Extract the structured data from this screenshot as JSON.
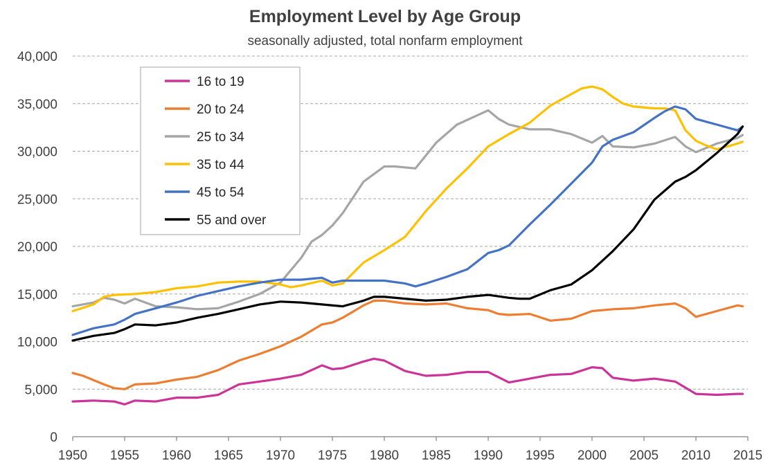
{
  "chart_data": {
    "type": "line",
    "title": "Employment Level by Age Group",
    "subtitle": "seasonally adjusted, total nonfarm employment",
    "xlabel": "",
    "ylabel": "",
    "xlim": [
      1950,
      2015
    ],
    "ylim": [
      0,
      40000
    ],
    "x_ticks": [
      "1950",
      "1955",
      "1960",
      "1965",
      "1970",
      "1975",
      "1980",
      "1985",
      "1990",
      "1995",
      "2000",
      "2005",
      "2010",
      "2015"
    ],
    "y_ticks": [
      "0",
      "5,000",
      "10,000",
      "15,000",
      "20,000",
      "25,000",
      "30,000",
      "35,000",
      "40,000"
    ],
    "grid": "horizontal dashed",
    "legend": "top-left inside plot",
    "series": [
      {
        "name": "16 to 19",
        "color": "#cc3399",
        "x": [
          1950,
          1952,
          1954,
          1955,
          1956,
          1958,
          1960,
          1962,
          1964,
          1966,
          1968,
          1970,
          1972,
          1974,
          1975,
          1976,
          1978,
          1979,
          1980,
          1982,
          1984,
          1986,
          1988,
          1990,
          1992,
          1994,
          1996,
          1998,
          2000,
          2001,
          2002,
          2004,
          2006,
          2008,
          2010,
          2012,
          2014,
          2014.5
        ],
        "y": [
          3700,
          3800,
          3700,
          3400,
          3800,
          3700,
          4100,
          4100,
          4400,
          5500,
          5800,
          6100,
          6500,
          7500,
          7100,
          7200,
          7900,
          8200,
          8000,
          6900,
          6400,
          6500,
          6800,
          6800,
          5700,
          6100,
          6500,
          6600,
          7300,
          7200,
          6200,
          5900,
          6100,
          5800,
          4500,
          4400,
          4500,
          4500
        ]
      },
      {
        "name": "20 to 24",
        "color": "#ed7d31",
        "x": [
          1950,
          1951,
          1953,
          1954,
          1955,
          1956,
          1958,
          1960,
          1962,
          1964,
          1966,
          1968,
          1970,
          1972,
          1974,
          1975,
          1976,
          1978,
          1979,
          1980,
          1982,
          1984,
          1986,
          1988,
          1990,
          1991,
          1992,
          1994,
          1996,
          1998,
          2000,
          2002,
          2004,
          2006,
          2008,
          2009,
          2010,
          2012,
          2014,
          2014.5
        ],
        "y": [
          6700,
          6400,
          5500,
          5100,
          5000,
          5500,
          5600,
          6000,
          6300,
          7000,
          8000,
          8700,
          9500,
          10500,
          11800,
          12000,
          12500,
          13800,
          14300,
          14300,
          14000,
          13900,
          14000,
          13500,
          13300,
          12900,
          12800,
          12900,
          12200,
          12400,
          13200,
          13400,
          13500,
          13800,
          14000,
          13500,
          12600,
          13200,
          13800,
          13700
        ]
      },
      {
        "name": "25 to 34",
        "color": "#a5a5a5",
        "x": [
          1950,
          1952,
          1953,
          1954,
          1955,
          1956,
          1958,
          1960,
          1962,
          1964,
          1966,
          1968,
          1970,
          1972,
          1973,
          1974,
          1975,
          1976,
          1978,
          1980,
          1981,
          1983,
          1985,
          1987,
          1989,
          1990,
          1991,
          1992,
          1994,
          1996,
          1998,
          2000,
          2001,
          2002,
          2004,
          2006,
          2008,
          2009,
          2010,
          2012,
          2014,
          2014.5
        ],
        "y": [
          13700,
          14100,
          14600,
          14400,
          14000,
          14500,
          13700,
          13600,
          13400,
          13500,
          14200,
          15000,
          16200,
          18800,
          20500,
          21200,
          22200,
          23500,
          26800,
          28400,
          28400,
          28200,
          30900,
          32800,
          33800,
          34300,
          33400,
          32800,
          32300,
          32300,
          31800,
          30900,
          31600,
          30500,
          30400,
          30800,
          31500,
          30500,
          29900,
          30800,
          31400,
          31700
        ]
      },
      {
        "name": "35 to 44",
        "color": "#ffc000",
        "x": [
          1950,
          1952,
          1953,
          1954,
          1956,
          1958,
          1960,
          1962,
          1964,
          1966,
          1968,
          1970,
          1971,
          1972,
          1974,
          1975,
          1976,
          1977,
          1978,
          1980,
          1982,
          1984,
          1986,
          1988,
          1990,
          1992,
          1994,
          1996,
          1998,
          1999,
          2000,
          2001,
          2002,
          2003,
          2004,
          2006,
          2007,
          2008,
          2009,
          2010,
          2011,
          2012,
          2014,
          2014.5
        ],
        "y": [
          13200,
          13900,
          14700,
          14900,
          15000,
          15200,
          15600,
          15800,
          16200,
          16300,
          16300,
          16000,
          15700,
          15900,
          16400,
          15900,
          16100,
          17200,
          18300,
          19600,
          21000,
          23700,
          26100,
          28200,
          30500,
          31800,
          33000,
          34800,
          36000,
          36600,
          36800,
          36500,
          35700,
          35000,
          34700,
          34500,
          34500,
          34300,
          32200,
          31100,
          30600,
          30200,
          30800,
          31000
        ]
      },
      {
        "name": "45 to 54",
        "color": "#4472c4",
        "x": [
          1950,
          1952,
          1954,
          1955,
          1956,
          1958,
          1960,
          1962,
          1964,
          1966,
          1968,
          1970,
          1972,
          1974,
          1975,
          1976,
          1978,
          1980,
          1982,
          1983,
          1984,
          1986,
          1988,
          1990,
          1991,
          1992,
          1994,
          1996,
          1998,
          2000,
          2001,
          2002,
          2004,
          2006,
          2007,
          2008,
          2009,
          2010,
          2012,
          2014,
          2014.5
        ],
        "y": [
          10700,
          11400,
          11800,
          12300,
          12900,
          13500,
          14100,
          14800,
          15300,
          15800,
          16200,
          16500,
          16500,
          16700,
          16200,
          16400,
          16400,
          16400,
          16100,
          15800,
          16100,
          16800,
          17600,
          19300,
          19600,
          20100,
          22300,
          24400,
          26600,
          28800,
          30500,
          31200,
          32000,
          33500,
          34200,
          34700,
          34400,
          33400,
          32800,
          32200,
          32600
        ]
      },
      {
        "name": "55 and over",
        "color": "#000000",
        "x": [
          1950,
          1952,
          1954,
          1955,
          1956,
          1958,
          1960,
          1962,
          1964,
          1966,
          1968,
          1970,
          1972,
          1974,
          1976,
          1978,
          1979,
          1980,
          1982,
          1984,
          1986,
          1988,
          1990,
          1992,
          1993,
          1994,
          1996,
          1998,
          2000,
          2002,
          2004,
          2006,
          2008,
          2009,
          2010,
          2012,
          2014,
          2014.5
        ],
        "y": [
          10100,
          10600,
          10900,
          11300,
          11800,
          11700,
          12000,
          12500,
          12900,
          13400,
          13900,
          14200,
          14100,
          13900,
          13700,
          14300,
          14700,
          14700,
          14500,
          14300,
          14400,
          14700,
          14900,
          14600,
          14500,
          14500,
          15400,
          16000,
          17500,
          19500,
          21800,
          24900,
          26800,
          27300,
          28000,
          29800,
          31800,
          32600
        ]
      }
    ]
  }
}
